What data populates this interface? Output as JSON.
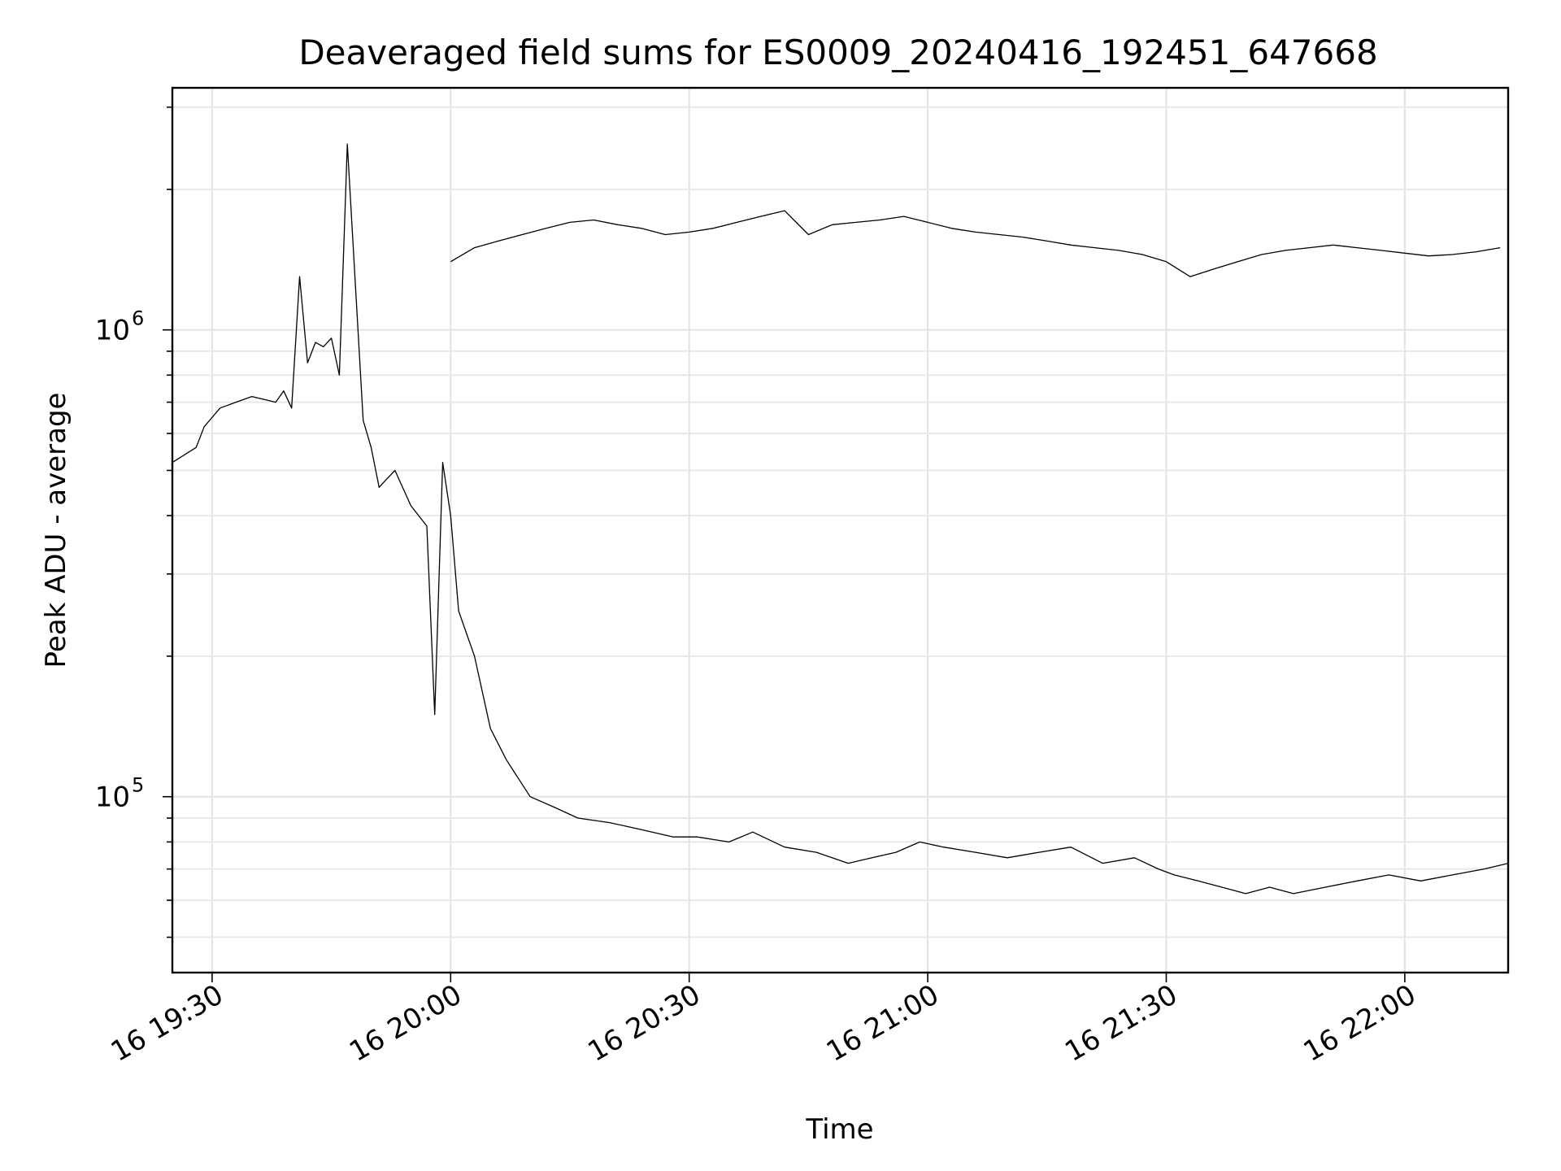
{
  "chart_data": {
    "type": "line",
    "title": "Deaveraged field sums for ES0009_20240416_192451_647668",
    "xlabel": "Time",
    "ylabel": "Peak ADU - average",
    "yscale": "log",
    "grid": true,
    "x_unit": "time (2024-04-16, HH:MM)",
    "xlim": [
      "19:25",
      "22:13"
    ],
    "ylim": [
      42000,
      3300000
    ],
    "xticks": [
      "19:30",
      "20:00",
      "20:30",
      "21:00",
      "21:30",
      "22:00"
    ],
    "xtick_labels": [
      "16 19:30",
      "16 20:00",
      "16 20:30",
      "16 21:00",
      "16 21:30",
      "16 22:00"
    ],
    "ytick_labels": [
      {
        "value": 100000,
        "base": "10",
        "exp": "5"
      },
      {
        "value": 1000000,
        "base": "10",
        "exp": "6"
      }
    ],
    "series": [
      {
        "color": "#000000",
        "x": [
          "19:25",
          "19:28",
          "19:29",
          "19:31",
          "19:33",
          "19:35",
          "19:38",
          "19:39",
          "19:40",
          "19:41",
          "19:42",
          "19:43",
          "19:44",
          "19:45",
          "19:46",
          "19:47",
          "19:49",
          "19:50",
          "19:51",
          "19:52",
          "19:53",
          "19:55",
          "19:57",
          "19:58",
          "19:59",
          "20:00",
          "20:01",
          "20:03",
          "20:05",
          "20:07",
          "20:10",
          "20:13",
          "20:16",
          "20:20",
          "20:24",
          "20:28",
          "20:31",
          "20:35",
          "20:38",
          "20:42",
          "20:46",
          "20:50",
          "20:53",
          "20:56",
          "20:59",
          "21:02",
          "21:06",
          "21:10",
          "21:14",
          "21:18",
          "21:22",
          "21:26",
          "21:29",
          "21:31",
          "21:34",
          "21:37",
          "21:40",
          "21:43",
          "21:46",
          "21:50",
          "21:54",
          "21:58",
          "22:02",
          "22:06",
          "22:10",
          "22:13"
        ],
        "y": [
          520000,
          560000,
          620000,
          680000,
          700000,
          720000,
          700000,
          740000,
          680000,
          1300000,
          850000,
          940000,
          920000,
          960000,
          800000,
          2500000,
          640000,
          560000,
          460000,
          480000,
          500000,
          420000,
          380000,
          150000,
          520000,
          400000,
          250000,
          200000,
          140000,
          120000,
          100000,
          95000,
          90000,
          88000,
          85000,
          82000,
          82000,
          80000,
          84000,
          78000,
          76000,
          72000,
          74000,
          76000,
          80000,
          78000,
          76000,
          74000,
          76000,
          78000,
          72000,
          74000,
          70000,
          68000,
          66000,
          64000,
          62000,
          64000,
          62000,
          64000,
          66000,
          68000,
          66000,
          68000,
          70000,
          72000
        ]
      },
      {
        "color": "#000000",
        "x": [
          "20:00",
          "20:03",
          "20:06",
          "20:09",
          "20:12",
          "20:15",
          "20:18",
          "20:21",
          "20:24",
          "20:27",
          "20:30",
          "20:33",
          "20:36",
          "20:39",
          "20:42",
          "20:45",
          "20:48",
          "20:51",
          "20:54",
          "20:57",
          "21:00",
          "21:03",
          "21:06",
          "21:09",
          "21:12",
          "21:15",
          "21:18",
          "21:21",
          "21:24",
          "21:27",
          "21:30",
          "21:33",
          "21:36",
          "21:39",
          "21:42",
          "21:45",
          "21:48",
          "21:51",
          "21:54",
          "21:57",
          "22:00",
          "22:03",
          "22:06",
          "22:09",
          "22:12"
        ],
        "y": [
          1400000,
          1500000,
          1550000,
          1600000,
          1650000,
          1700000,
          1720000,
          1680000,
          1650000,
          1600000,
          1620000,
          1650000,
          1700000,
          1750000,
          1800000,
          1600000,
          1680000,
          1700000,
          1720000,
          1750000,
          1700000,
          1650000,
          1620000,
          1600000,
          1580000,
          1550000,
          1520000,
          1500000,
          1480000,
          1450000,
          1400000,
          1300000,
          1350000,
          1400000,
          1450000,
          1480000,
          1500000,
          1520000,
          1500000,
          1480000,
          1460000,
          1440000,
          1450000,
          1470000,
          1500000
        ]
      }
    ]
  }
}
